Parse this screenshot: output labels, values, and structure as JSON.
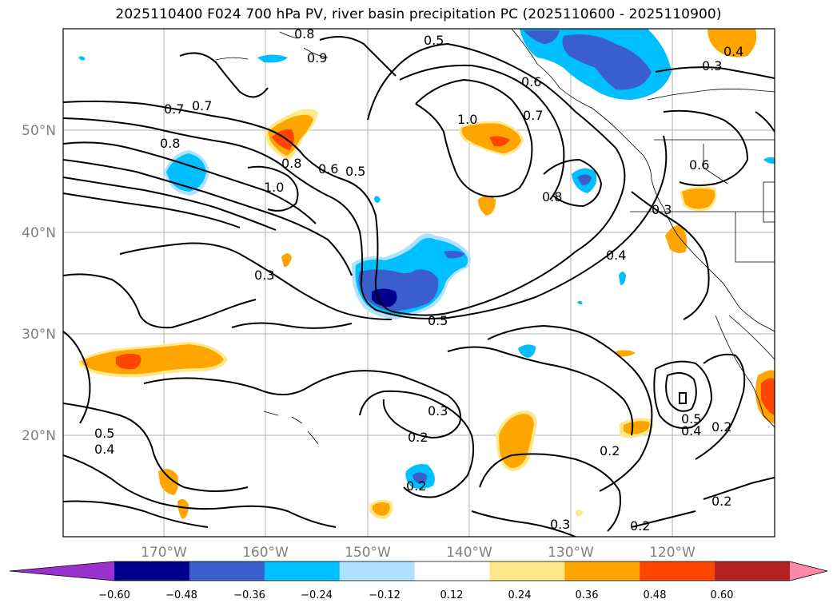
{
  "title": "2025110400 F024 700 hPa PV, river basin precipitation PC (2025110600 - 2025110900)",
  "map": {
    "lat_labels": [
      "50°N",
      "40°N",
      "30°N",
      "20°N"
    ],
    "lon_labels": [
      "170°W",
      "160°W",
      "150°W",
      "140°W",
      "130°W",
      "120°W"
    ],
    "contour_labels": [
      "0.8",
      "0.5",
      "0.9",
      "0.7",
      "0.7",
      "0.8",
      "0.8",
      "1.0",
      "0.6",
      "0.5",
      "1.0",
      "0.6",
      "0.7",
      "0.8",
      "0.3",
      "0.4",
      "0.3",
      "0.5",
      "0.3",
      "0.2",
      "0.2",
      "0.2",
      "0.5",
      "0.4",
      "0.2",
      "0.2",
      "0.2",
      "0.3",
      "0.5",
      "0.4",
      "0.6",
      "0.3",
      "0.4"
    ]
  },
  "colorbar": {
    "ticks": [
      "−0.60",
      "−0.48",
      "−0.36",
      "−0.24",
      "−0.12",
      "0.12",
      "0.24",
      "0.36",
      "0.48",
      "0.60"
    ],
    "colors": [
      "#9932cc",
      "#00008b",
      "#3a5fcd",
      "#00bfff",
      "#b0e2ff",
      "#ffffff",
      "#ffe88a",
      "#ffa500",
      "#ff4500",
      "#b22222",
      "#ff88aa"
    ]
  }
}
